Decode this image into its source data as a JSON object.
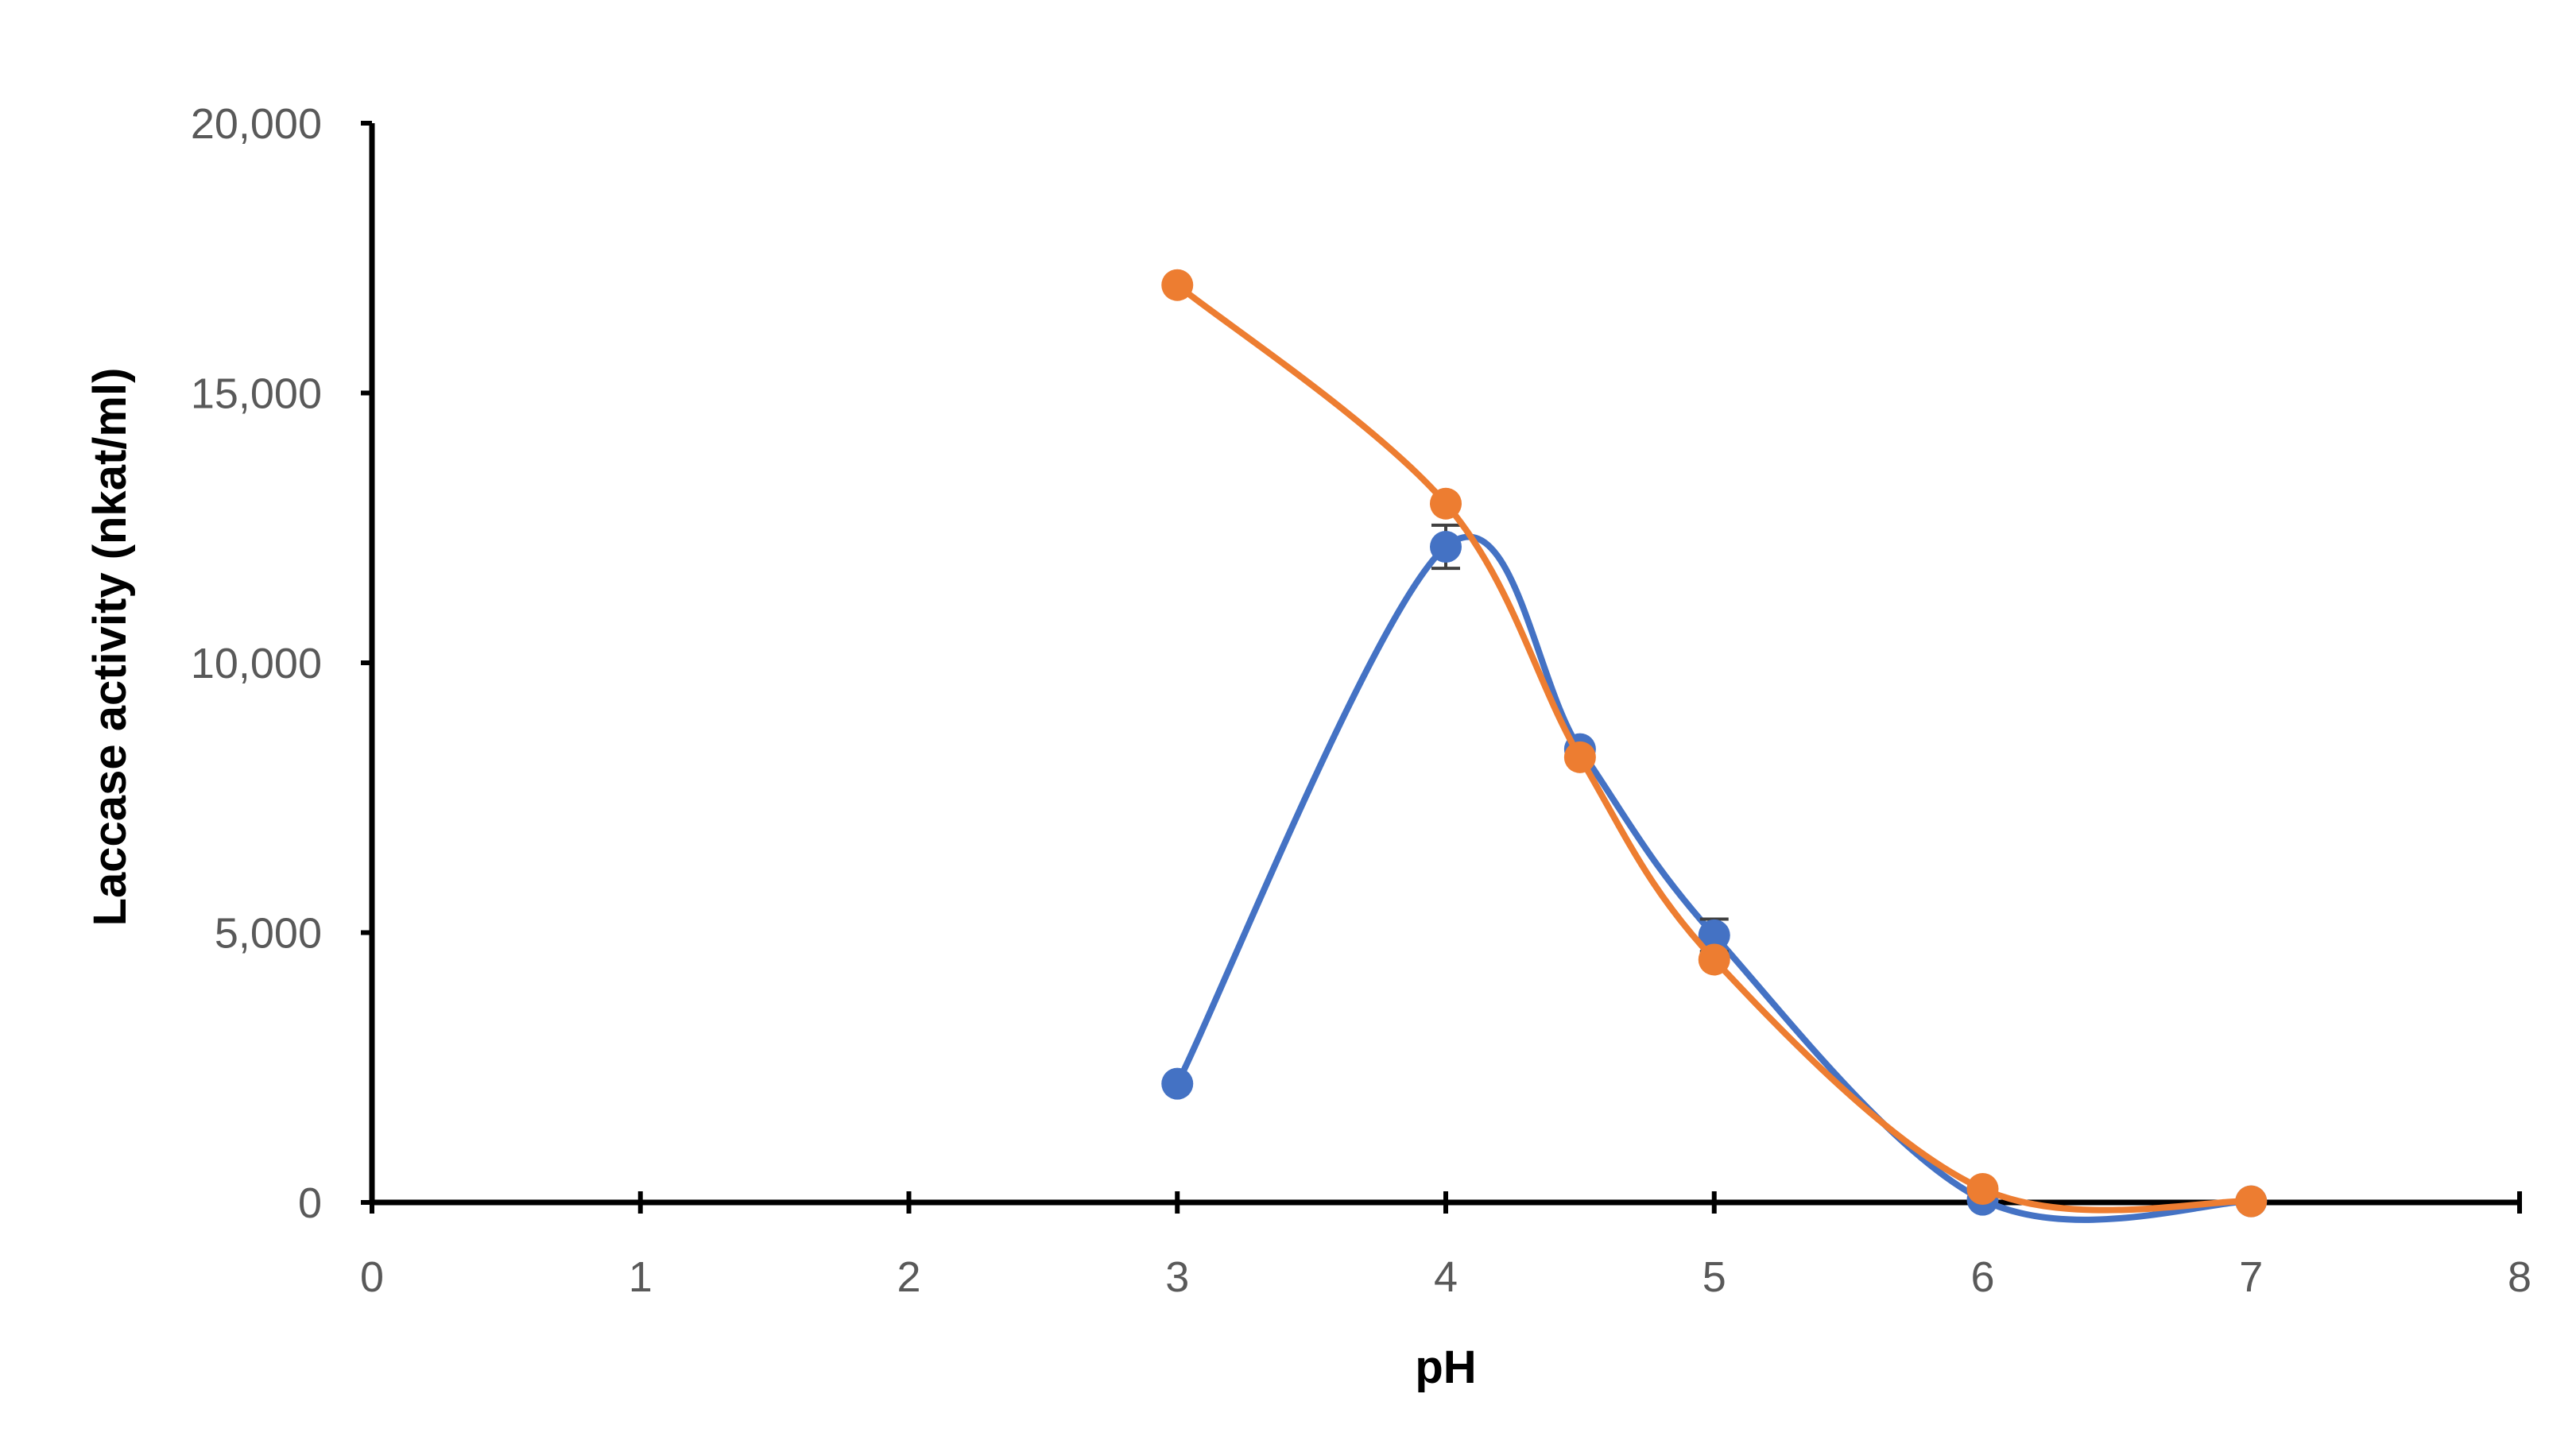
{
  "chart_data": {
    "type": "line",
    "title": "",
    "xlabel": "pH",
    "ylabel": "Laccase activity  (nkat/ml)",
    "xlim": [
      0,
      8
    ],
    "ylim": [
      0,
      20000
    ],
    "x_ticks": [
      0,
      1,
      2,
      3,
      4,
      5,
      6,
      7,
      8
    ],
    "y_ticks": [
      0,
      5000,
      10000,
      15000,
      20000
    ],
    "x_tick_labels": [
      "0",
      "1",
      "2",
      "3",
      "4",
      "5",
      "6",
      "7",
      "8"
    ],
    "y_tick_labels": [
      "0",
      "5,000",
      "10,000",
      "15,000",
      "20,000"
    ],
    "grid": false,
    "smooth": true,
    "series": [
      {
        "color": "#4472C4",
        "x": [
          3,
          4,
          4.5,
          5,
          6,
          7
        ],
        "y": [
          2200,
          12150,
          8400,
          4950,
          50,
          20
        ],
        "error": [
          0,
          400,
          0,
          300,
          0,
          0
        ]
      },
      {
        "color": "#ED7D31",
        "x": [
          3,
          4,
          4.5,
          5,
          6,
          7
        ],
        "y": [
          17000,
          12950,
          8250,
          4500,
          250,
          20
        ],
        "error": [
          0,
          0,
          0,
          0,
          0,
          0
        ]
      }
    ]
  }
}
